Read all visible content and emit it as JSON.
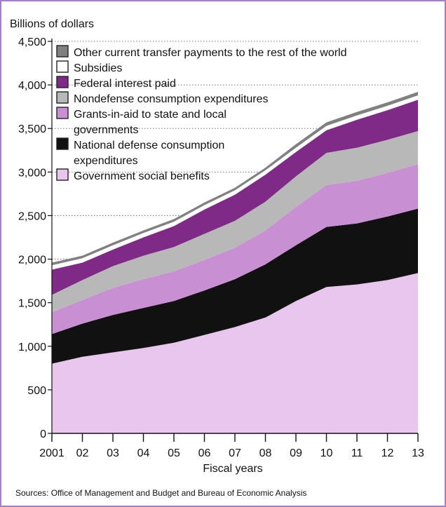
{
  "chart_data": {
    "type": "area",
    "stacked": true,
    "ylabel": "Billions of dollars",
    "xlabel": "Fiscal years",
    "x": [
      "2001",
      "02",
      "03",
      "04",
      "05",
      "06",
      "07",
      "08",
      "09",
      "10",
      "11",
      "12",
      "13"
    ],
    "ylim": [
      0,
      4500
    ],
    "yticks": [
      0,
      500,
      1000,
      1500,
      2000,
      2500,
      3000,
      3500,
      4000,
      4500
    ],
    "ytick_labels": [
      "0",
      "500",
      "1,000",
      "1,500",
      "2,000",
      "2,500",
      "3,000",
      "3,500",
      "4,000",
      "4,500"
    ],
    "grid": "horizontal dotted",
    "legend_position": "top-left",
    "series": [
      {
        "name": "Government social benefits",
        "color": "#e9c6ee",
        "values": [
          800,
          880,
          930,
          980,
          1040,
          1130,
          1220,
          1330,
          1520,
          1680,
          1710,
          1760,
          1840
        ]
      },
      {
        "name": "National defense consumption expenditures",
        "color": "#111111",
        "values": [
          340,
          380,
          430,
          460,
          480,
          510,
          550,
          610,
          640,
          690,
          700,
          730,
          740
        ]
      },
      {
        "name": "Grants-in-aid to state and local governments",
        "color": "#c98fd3",
        "values": [
          250,
          270,
          310,
          330,
          340,
          350,
          360,
          390,
          440,
          480,
          490,
          500,
          510
        ]
      },
      {
        "name": "Nondefense consumption expenditures",
        "color": "#b8b8b8",
        "values": [
          200,
          230,
          250,
          270,
          280,
          300,
          310,
          330,
          350,
          370,
          380,
          380,
          380
        ]
      },
      {
        "name": "Federal interest paid",
        "color": "#7e2a86",
        "values": [
          290,
          200,
          190,
          210,
          240,
          280,
          300,
          310,
          280,
          260,
          320,
          340,
          360
        ]
      },
      {
        "name": "Subsidies",
        "color": "#ffffff",
        "values": [
          50,
          50,
          50,
          50,
          50,
          50,
          50,
          50,
          50,
          50,
          50,
          50,
          50
        ]
      },
      {
        "name": "Other current transfer payments to the rest of the world",
        "color": "#808080",
        "values": [
          30,
          30,
          30,
          30,
          30,
          30,
          30,
          30,
          40,
          40,
          40,
          40,
          40
        ]
      }
    ],
    "legend": [
      {
        "lines": [
          "Other current transfer payments to the rest of the world"
        ],
        "color": "#808080"
      },
      {
        "lines": [
          "Subsidies"
        ],
        "color": "#ffffff"
      },
      {
        "lines": [
          "Federal interest paid"
        ],
        "color": "#7e2a86"
      },
      {
        "lines": [
          "Nondefense consumption expenditures"
        ],
        "color": "#b8b8b8"
      },
      {
        "lines": [
          "Grants-in-aid to state and local",
          "governments"
        ],
        "color": "#c98fd3"
      },
      {
        "lines": [
          "National defense consumption",
          "expenditures"
        ],
        "color": "#111111"
      },
      {
        "lines": [
          "Government social benefits"
        ],
        "color": "#e9c6ee"
      }
    ],
    "source": "Sources: Office of Management and Budget and Bureau of Economic Analysis"
  }
}
